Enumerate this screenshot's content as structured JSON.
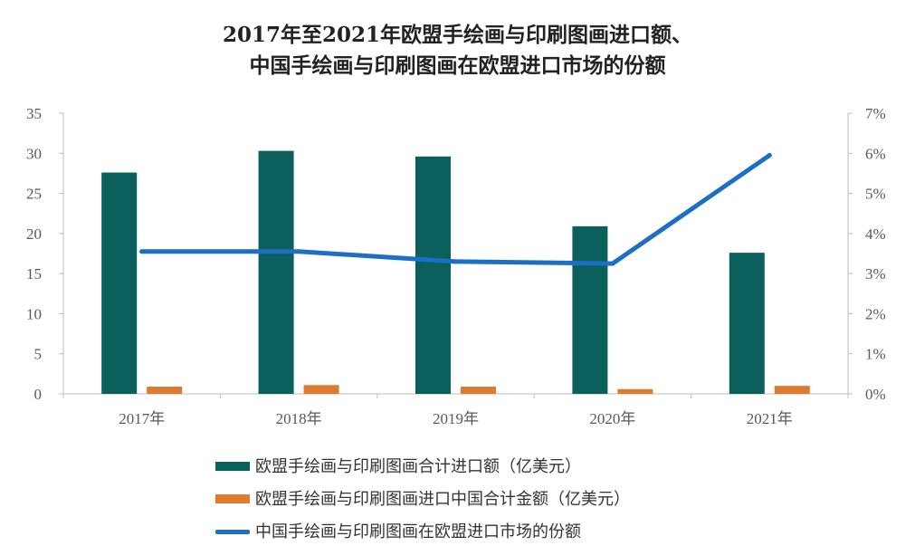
{
  "chart_data": {
    "type": "bar",
    "title_lines": [
      "2017年至2021年欧盟手绘画与印刷图画进口额、",
      "中国手绘画与印刷图画在欧盟进口市场的份额"
    ],
    "categories": [
      "2017年",
      "2018年",
      "2019年",
      "2020年",
      "2021年"
    ],
    "series": [
      {
        "name": "欧盟手绘画与印刷图画合计进口额（亿美元）",
        "kind": "bar",
        "axis": "left",
        "color": "#0b5f5c",
        "values": [
          27.6,
          30.3,
          29.6,
          20.9,
          17.6
        ]
      },
      {
        "name": "欧盟手绘画与印刷图画进口中国合计金额（亿美元）",
        "kind": "bar",
        "axis": "left",
        "color": "#e07a2e",
        "values": [
          0.9,
          1.1,
          0.9,
          0.6,
          1.0
        ]
      },
      {
        "name": "中国手绘画与印刷图画在欧盟进口市场的份额",
        "kind": "line",
        "axis": "right",
        "color": "#1c6fc4",
        "values": [
          3.55,
          3.55,
          3.3,
          3.25,
          5.95
        ]
      }
    ],
    "left_axis": {
      "ylim": [
        0,
        35
      ],
      "ticks": [
        "0",
        "5",
        "10",
        "15",
        "20",
        "25",
        "30",
        "35"
      ]
    },
    "right_axis": {
      "ylim": [
        0,
        7
      ],
      "ticks": [
        "0%",
        "1%",
        "2%",
        "3%",
        "4%",
        "5%",
        "6%",
        "7%"
      ]
    },
    "grid": false,
    "legend_position": "bottom"
  }
}
